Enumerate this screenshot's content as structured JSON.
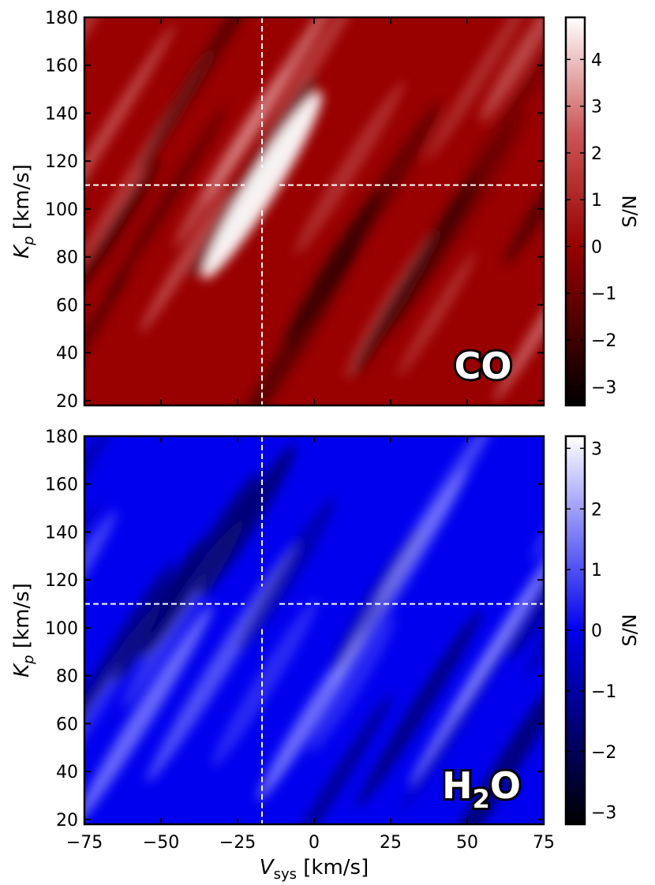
{
  "chart_data": [
    {
      "type": "heatmap",
      "molecule_label": "CO",
      "ylabel_main": "K",
      "ylabel_sub": "p",
      "ylabel_unit": " [km/s]",
      "xlim": [
        -75,
        75
      ],
      "ylim": [
        18,
        180
      ],
      "x_ticks": [
        -75,
        -50,
        -25,
        0,
        25,
        50,
        75
      ],
      "y_ticks": [
        20,
        40,
        60,
        80,
        100,
        120,
        140,
        160,
        180
      ],
      "x_tick_labels_shown": false,
      "crosshair": {
        "vsys": -17,
        "kp": 110
      },
      "colorbar": {
        "label": "S/N",
        "range": [
          -3.4,
          4.9
        ],
        "ticks": [
          -3,
          -2,
          -1,
          0,
          1,
          2,
          3,
          4
        ],
        "colors": {
          "low": "#000000",
          "mid": "#990000",
          "high": "#ffffff"
        }
      },
      "peak": {
        "vsys": -17,
        "kp": 110,
        "snr": 4.8
      }
    },
    {
      "type": "heatmap",
      "molecule_label": "H",
      "molecule_sub": "2",
      "molecule_label_end": "O",
      "ylabel_main": "K",
      "ylabel_sub": "p",
      "ylabel_unit": " [km/s]",
      "xlabel_main": "V",
      "xlabel_sub": "sys",
      "xlabel_unit": " [km/s]",
      "xlim": [
        -75,
        75
      ],
      "ylim": [
        18,
        180
      ],
      "x_ticks": [
        -75,
        -50,
        -25,
        0,
        25,
        50,
        75
      ],
      "y_ticks": [
        20,
        40,
        60,
        80,
        100,
        120,
        140,
        160,
        180
      ],
      "x_tick_labels_shown": true,
      "crosshair": {
        "vsys": -17,
        "kp": 110
      },
      "colorbar": {
        "label": "S/N",
        "range": [
          -3.2,
          3.2
        ],
        "ticks": [
          -3,
          -2,
          -1,
          0,
          1,
          2,
          3
        ],
        "colors": {
          "low": "#000000",
          "mid": "#0000ee",
          "high": "#ffffff"
        }
      },
      "peak": null
    }
  ]
}
